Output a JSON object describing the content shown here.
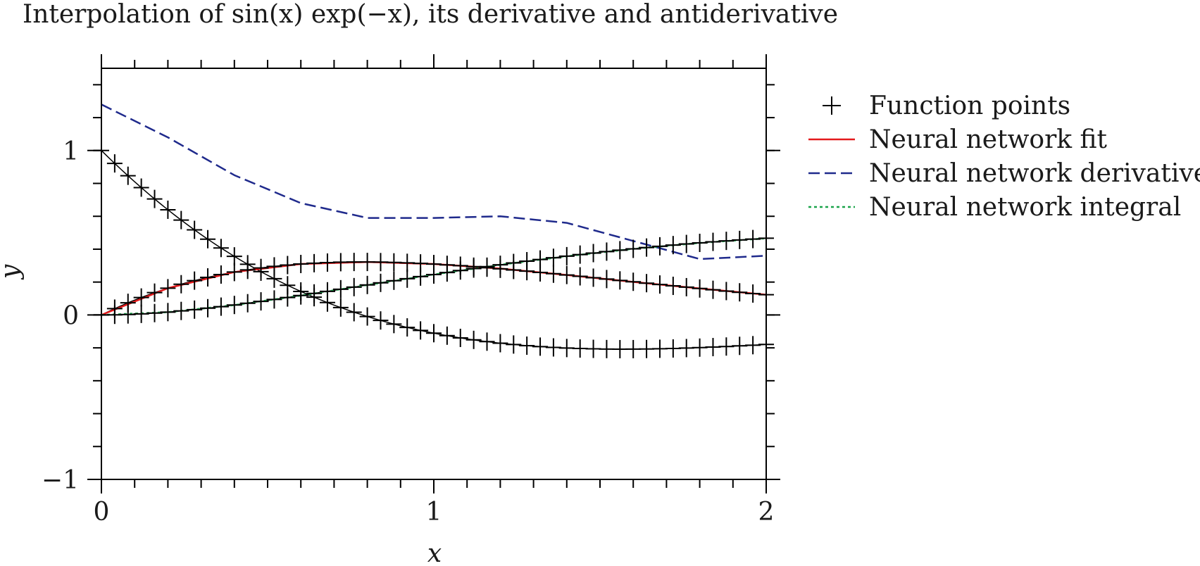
{
  "chart_data": {
    "type": "line",
    "title": "Interpolation of sin(x) exp(−x), its derivative and antiderivative",
    "xlabel": "x",
    "ylabel": "y",
    "xlim": [
      0,
      2
    ],
    "ylim": [
      -1,
      1.5
    ],
    "xticks": [
      {
        "value": 0,
        "label": "0"
      },
      {
        "value": 1,
        "label": "1"
      },
      {
        "value": 2,
        "label": "2"
      }
    ],
    "yticks": [
      {
        "value": -1,
        "label": "−1"
      },
      {
        "value": 0,
        "label": "0"
      },
      {
        "value": 1,
        "label": "1"
      }
    ],
    "x_minor_step": 0.1,
    "y_minor_step": 0.2,
    "grid": false,
    "legend_position": "outside-right",
    "point_x_step": 0.04,
    "series": [
      {
        "name": "Function points",
        "kind": "points",
        "marker": "plus",
        "color": "#000000",
        "functions": [
          "sin(x)exp(-x)",
          "exp(-x)(cos(x)-sin(x))",
          "antiderivative of sin(x)exp(-x)"
        ]
      },
      {
        "name": "Neural network fit",
        "kind": "line",
        "style": "solid",
        "color": "#e31a1c",
        "x": [
          0,
          0.2,
          0.4,
          0.6,
          0.8,
          1.0,
          1.2,
          1.4,
          1.6,
          1.8,
          2.0
        ],
        "y": [
          0.0,
          0.163,
          0.261,
          0.31,
          0.322,
          0.31,
          0.282,
          0.243,
          0.201,
          0.161,
          0.123
        ]
      },
      {
        "name": "Neural network derivative",
        "kind": "line",
        "style": "dashed",
        "color": "#1f2a8c",
        "x": [
          0,
          0.2,
          0.4,
          0.6,
          0.8,
          1.0,
          1.2,
          1.4,
          1.6,
          1.8,
          2.0
        ],
        "y": [
          1.28,
          1.08,
          0.85,
          0.68,
          0.59,
          0.59,
          0.6,
          0.56,
          0.45,
          0.34,
          0.36
        ]
      },
      {
        "name": "Neural network integral",
        "kind": "line",
        "style": "dotted",
        "color": "#1aa34a",
        "x": [
          0,
          0.2,
          0.4,
          0.6,
          0.8,
          1.0,
          1.2,
          1.4,
          1.6,
          1.8,
          2.0
        ],
        "y": [
          0.0,
          0.017,
          0.06,
          0.118,
          0.182,
          0.246,
          0.305,
          0.357,
          0.402,
          0.438,
          0.466
        ]
      }
    ]
  }
}
